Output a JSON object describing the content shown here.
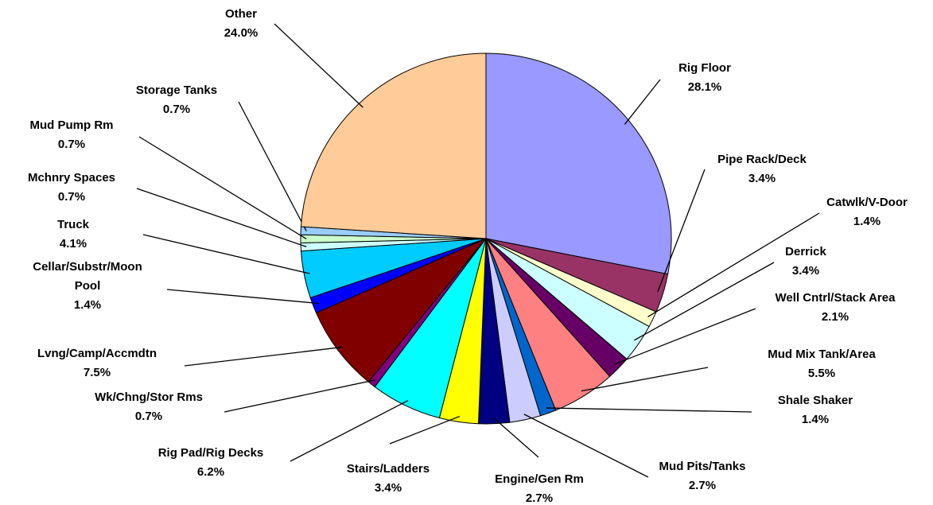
{
  "chart_data": {
    "type": "pie",
    "categories": [
      "Rig Floor",
      "Pipe Rack/Deck",
      "Catwlk/V-Door",
      "Derrick",
      "Well Cntrl/Stack Area",
      "Mud Mix Tank/Area",
      "Shale Shaker",
      "Mud Pits/Tanks",
      "Engine/Gen Rm",
      "Stairs/Ladders",
      "Rig Pad/Rig Decks",
      "Wk/Chng/Stor Rms",
      "Lvng/Camp/Accmdtn",
      "Cellar/Substr/Moon Pool",
      "Truck",
      "Mchnry Spaces",
      "Mud Pump Rm",
      "Storage Tanks",
      "Other"
    ],
    "values": [
      28.1,
      3.4,
      1.4,
      3.4,
      2.1,
      5.5,
      1.4,
      2.7,
      2.7,
      3.4,
      6.2,
      0.7,
      7.5,
      1.4,
      4.1,
      0.7,
      0.7,
      0.7,
      24.0
    ],
    "value_labels": [
      "28.1%",
      "3.4%",
      "1.4%",
      "3.4%",
      "2.1%",
      "5.5%",
      "1.4%",
      "2.7%",
      "2.7%",
      "3.4%",
      "6.2%",
      "0.7%",
      "7.5%",
      "1.4%",
      "4.1%",
      "0.7%",
      "0.7%",
      "0.7%",
      "24.0%"
    ],
    "colors": [
      "#9999ff",
      "#993366",
      "#ffffcc",
      "#ccffff",
      "#660066",
      "#ff8080",
      "#0066cc",
      "#ccccff",
      "#000080",
      "#ffff00",
      "#00ffff",
      "#800080",
      "#800000",
      "#0000ff",
      "#00ccff",
      "#ccffff",
      "#ccffcc",
      "#99ccff",
      "#ffcc99"
    ]
  }
}
